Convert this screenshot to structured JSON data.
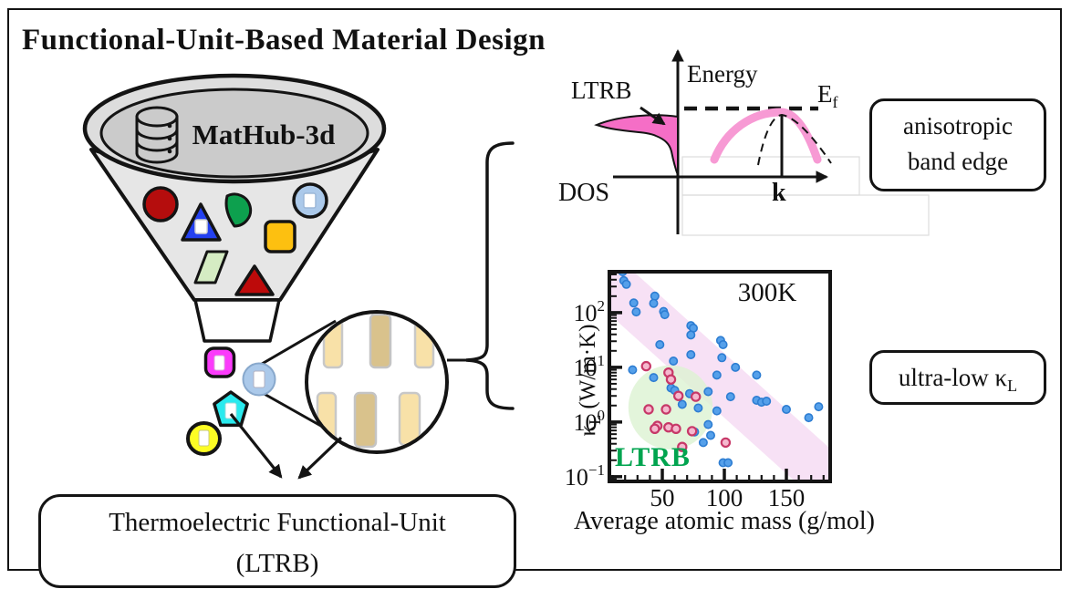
{
  "title": "Functional-Unit-Based Material Design",
  "funnel": {
    "database_label": "MatHub-3d"
  },
  "output_box": {
    "line1": "Thermoelectric Functional-Unit",
    "line2": "(LTRB)"
  },
  "band_diagram": {
    "ltrb_label": "LTRB",
    "energy_label": "Energy",
    "fermi_base": "E",
    "fermi_sub": "f",
    "dos_label": "DOS",
    "k_label": "k",
    "callout_line1": "anisotropic",
    "callout_line2": "band edge"
  },
  "ultra_low_callout": {
    "base": "ultra-low κ",
    "sub": "L"
  },
  "chart_data": {
    "type": "scatter",
    "title": "",
    "xlabel": "Average atomic mass (g/mol)",
    "ylabel": "κ_L (W/m·K)",
    "ylabel_parts": {
      "base": "κ",
      "sub": "L",
      "rest": " (W/m·K)"
    },
    "annotations": {
      "temperature": "300K",
      "region_label": "LTRB"
    },
    "x_scale": "linear",
    "y_scale": "log",
    "xlim": [
      7.35,
      185.3
    ],
    "ylim": [
      0.082,
      560
    ],
    "x_ticks": [
      50,
      100,
      150
    ],
    "x_minor_tick_step": 10,
    "y_tick_exponents": [
      2,
      1,
      0,
      -1
    ],
    "series": [
      {
        "name": "blue",
        "color": "#55a0ea",
        "edge": "#2d7dd2",
        "points": [
          [
            18,
            560
          ],
          [
            19,
            385
          ],
          [
            21,
            330
          ],
          [
            27,
            150
          ],
          [
            44,
            200
          ],
          [
            43,
            148
          ],
          [
            29,
            103
          ],
          [
            51,
            105
          ],
          [
            52,
            92
          ],
          [
            73,
            58
          ],
          [
            75,
            52
          ],
          [
            73,
            39
          ],
          [
            48,
            26
          ],
          [
            97,
            31
          ],
          [
            99,
            26
          ],
          [
            73,
            17
          ],
          [
            98,
            15
          ],
          [
            59,
            13
          ],
          [
            26,
            9
          ],
          [
            109,
            10
          ],
          [
            94,
            7.2
          ],
          [
            126,
            7.2
          ],
          [
            43,
            6.5
          ],
          [
            57,
            4.2
          ],
          [
            60,
            3.8
          ],
          [
            87,
            3.6
          ],
          [
            72,
            3.3
          ],
          [
            105,
            2.9
          ],
          [
            66,
            2.1
          ],
          [
            79,
            1.8
          ],
          [
            94,
            1.6
          ],
          [
            126,
            2.5
          ],
          [
            130,
            2.3
          ],
          [
            134,
            2.4
          ],
          [
            150,
            1.7
          ],
          [
            168,
            1.2
          ],
          [
            176,
            1.9
          ],
          [
            87,
            0.9
          ],
          [
            76,
            0.66
          ],
          [
            89,
            0.57
          ],
          [
            83,
            0.42
          ],
          [
            99,
            0.18
          ],
          [
            103,
            0.18
          ]
        ]
      },
      {
        "name": "pink",
        "color": "#f5b8ce",
        "edge": "#c73868",
        "points": [
          [
            37,
            10.5
          ],
          [
            55,
            8
          ],
          [
            57,
            6
          ],
          [
            63,
            3
          ],
          [
            77,
            2.9
          ],
          [
            39,
            1.7
          ],
          [
            53,
            1.7
          ],
          [
            46,
            0.85
          ],
          [
            44,
            0.75
          ],
          [
            55,
            0.8
          ],
          [
            61,
            0.75
          ],
          [
            74,
            0.68
          ],
          [
            101,
            0.42
          ],
          [
            66,
            0.35
          ]
        ]
      }
    ],
    "band_region": {
      "color": "#f6dcf3",
      "opacity": 0.85,
      "polygon": [
        [
          7.4,
          560
        ],
        [
          27,
          560
        ],
        [
          185,
          0.33
        ],
        [
          185,
          0.082
        ],
        [
          157,
          0.082
        ],
        [
          7.4,
          93
        ]
      ]
    },
    "green_region": {
      "color": "#dcf3d2",
      "opacity": 0.8,
      "center": [
        56.6,
        1.85
      ],
      "radius_mass": 34,
      "radius_decades": 0.77
    }
  },
  "colors": {
    "ltrb_green": "#00a44f",
    "dos_pink": "#f56ec6",
    "band_pink": "#f79ad4",
    "red_circle": "#b50d0d",
    "blue_triangle": "#2441f0",
    "green_shape": "#0da04e",
    "light_blue": "#abc9ea",
    "orange_square": "#fdc010",
    "pale_green": "#d5ecc3",
    "red_triangle": "#bd0a0a",
    "magenta": "#fb3bfb",
    "cyan": "#2aeaee",
    "yellow": "#fdfd24",
    "bar_light": "#f8e1a8",
    "bar_dark": "#d9c28c"
  }
}
